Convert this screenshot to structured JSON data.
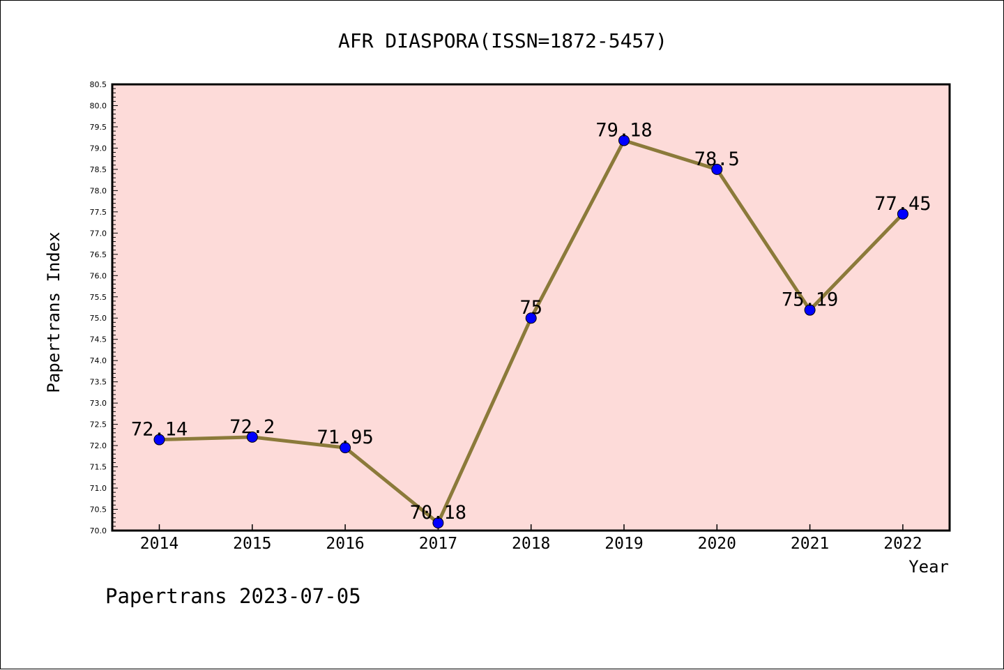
{
  "chart_data": {
    "type": "line",
    "title": "AFR DIASPORA(ISSN=1872-5457)",
    "xlabel": "Year",
    "ylabel": "Papertrans Index",
    "footer": "Papertrans 2023-07-05",
    "categories": [
      "2014",
      "2015",
      "2016",
      "2017",
      "2018",
      "2019",
      "2020",
      "2021",
      "2022"
    ],
    "series": [
      {
        "values": [
          72.14,
          72.2,
          71.95,
          70.18,
          75,
          79.18,
          78.5,
          75.19,
          77.45
        ],
        "labels": [
          "72.14",
          "72.2",
          "71.95",
          "70.18",
          "75",
          "79.18",
          "78.5",
          "75.19",
          "77.45"
        ]
      }
    ],
    "ylim": [
      70.0,
      80.5
    ],
    "yticks": [
      "70.0",
      "70.5",
      "71.0",
      "71.5",
      "72.0",
      "72.5",
      "73.0",
      "73.5",
      "74.0",
      "74.5",
      "75.0",
      "75.5",
      "76.0",
      "76.5",
      "77.0",
      "77.5",
      "78.0",
      "78.5",
      "79.0",
      "79.5",
      "80.0",
      "80.5"
    ],
    "grid": false,
    "colors": {
      "plot_background": "#fddbd9",
      "line": "#8b7a3a",
      "marker": "#0000ff"
    }
  }
}
